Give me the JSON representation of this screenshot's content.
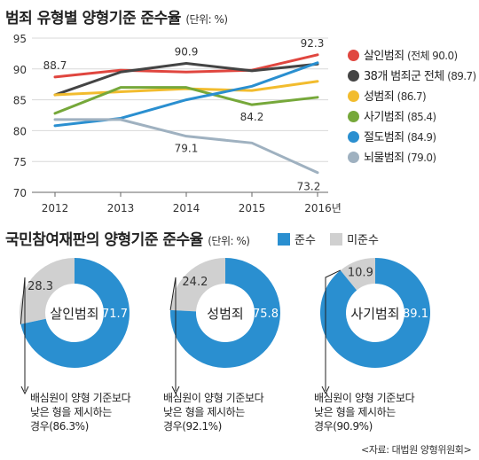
{
  "line_chart": {
    "title": "범죄 유형별 양형기준 준수율",
    "unit": "(단위: %)",
    "y_ticks": [
      "95",
      "90",
      "85",
      "80",
      "75",
      "70"
    ],
    "x_ticks": [
      "2012",
      "2013",
      "2014",
      "2015",
      "2016년"
    ],
    "annotations": [
      "88.7",
      "90.9",
      "92.3",
      "84.2",
      "79.1",
      "73.2"
    ],
    "legend": [
      {
        "name": "살인범죄",
        "note": "(전체 90.0)",
        "color": "#e0463f"
      },
      {
        "name": "38개 범죄군 전체",
        "note": "(89.7)",
        "color": "#444444"
      },
      {
        "name": "성범죄",
        "note": "(86.7)",
        "color": "#f2bc2e"
      },
      {
        "name": "사기범죄",
        "note": "(85.4)",
        "color": "#76a83a"
      },
      {
        "name": "절도범죄",
        "note": "(84.9)",
        "color": "#2a8fd0"
      },
      {
        "name": "뇌물범죄",
        "note": "(79.0)",
        "color": "#9fb1c0"
      }
    ]
  },
  "donut_section": {
    "title": "국민참여재판의 양형기준 준수율",
    "unit": "(단위: %)",
    "legend": [
      {
        "name": "준수",
        "color": "#2a8fd0"
      },
      {
        "name": "미준수",
        "color": "#d0d0d0"
      }
    ],
    "donuts": [
      {
        "name": "살인범죄",
        "comply": "71.7",
        "noncomply": "28.3",
        "note": [
          "배심원이 양형 기준보다",
          "낮은 형을 제시하는",
          "경우(86.3%)"
        ]
      },
      {
        "name": "성범죄",
        "comply": "75.8",
        "noncomply": "24.2",
        "note": [
          "배심원이 양형 기준보다",
          "낮은 형을 제시하는",
          "경우(92.1%)"
        ]
      },
      {
        "name": "사기범죄",
        "comply": "89.1",
        "noncomply": "10.9",
        "note": [
          "배심원이 양형 기준보다",
          "낮은 형을 제시하는",
          "경우(90.9%)"
        ]
      }
    ]
  },
  "source": "<자료: 대법원 양형위원회>",
  "chart_data": [
    {
      "type": "line",
      "title": "범죄 유형별 양형기준 준수율",
      "x": [
        "2012",
        "2013",
        "2014",
        "2015",
        "2016"
      ],
      "ylim": [
        70,
        95
      ],
      "series": [
        {
          "name": "살인범죄",
          "values": [
            88.7,
            89.8,
            89.5,
            89.8,
            92.3
          ],
          "color": "#e0463f"
        },
        {
          "name": "38개 범죄군 전체",
          "values": [
            85.8,
            89.5,
            90.9,
            89.7,
            90.8
          ],
          "color": "#444444"
        },
        {
          "name": "성범죄",
          "values": [
            85.8,
            86.3,
            86.8,
            86.5,
            88.0
          ],
          "color": "#f2bc2e"
        },
        {
          "name": "사기범죄",
          "values": [
            82.8,
            87.0,
            87.0,
            84.2,
            85.4
          ],
          "color": "#76a83a"
        },
        {
          "name": "절도범죄",
          "values": [
            80.8,
            82.0,
            85.0,
            87.2,
            91.0
          ],
          "color": "#2a8fd0"
        },
        {
          "name": "뇌물범죄",
          "values": [
            81.8,
            81.8,
            79.1,
            78.0,
            73.2
          ],
          "color": "#9fb1c0"
        }
      ]
    },
    {
      "type": "pie",
      "title": "살인범죄",
      "categories": [
        "준수",
        "미준수"
      ],
      "values": [
        71.7,
        28.3
      ]
    },
    {
      "type": "pie",
      "title": "성범죄",
      "categories": [
        "준수",
        "미준수"
      ],
      "values": [
        75.8,
        24.2
      ]
    },
    {
      "type": "pie",
      "title": "사기범죄",
      "categories": [
        "준수",
        "미준수"
      ],
      "values": [
        89.1,
        10.9
      ]
    }
  ]
}
